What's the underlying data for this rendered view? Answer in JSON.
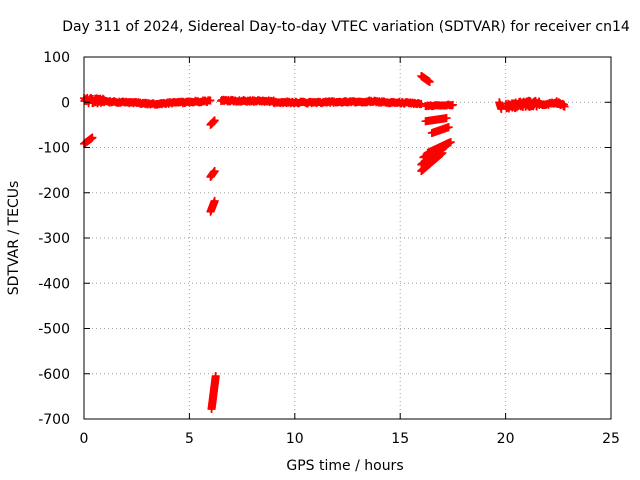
{
  "chart_data": {
    "type": "scatter",
    "title": "Day 311 of 2024, Sidereal Day-to-day VTEC variation (SDTVAR) for receiver cn14",
    "xlabel": "GPS time / hours",
    "ylabel": "SDTVAR / TECUs",
    "xlim": [
      0,
      25
    ],
    "ylim": [
      -700,
      100
    ],
    "xticks": [
      0,
      5,
      10,
      15,
      20,
      25
    ],
    "yticks": [
      100,
      0,
      -100,
      -200,
      -300,
      -400,
      -500,
      -600,
      -700
    ],
    "grid": true,
    "marker": "+",
    "colors": {
      "series": "#ff0000",
      "grid": "#a0a0a0",
      "axis": "#000000",
      "background": "#ffffff"
    },
    "series": [
      {
        "name": "cn14",
        "segments": [
          {
            "x": [
              0.0,
              0.4
            ],
            "y": [
              -92,
              -78
            ],
            "step": 0.03
          },
          {
            "x": [
              0.0,
              1.0
            ],
            "y": [
              4,
              3
            ],
            "jitter": 6,
            "step": 0.02
          },
          {
            "x": [
              1.0,
              3.5
            ],
            "y": [
              2,
              -4
            ],
            "jitter": 2,
            "step": 0.04
          },
          {
            "x": [
              3.5,
              6.0
            ],
            "y": [
              -3,
              3
            ],
            "jitter": 2,
            "step": 0.04
          },
          {
            "x": [
              6.0,
              6.2
            ],
            "y": [
              -50,
              -40
            ],
            "step": 0.02
          },
          {
            "x": [
              6.0,
              6.2
            ],
            "y": [
              -165,
              -152
            ],
            "step": 0.02
          },
          {
            "x": [
              6.0,
              6.2
            ],
            "y": [
              -242,
              -218
            ],
            "step": 0.015
          },
          {
            "x": [
              6.05,
              6.25
            ],
            "y": [
              -678,
              -605
            ],
            "step": 0.006
          },
          {
            "x": [
              6.5,
              9.0
            ],
            "y": [
              4,
              2
            ],
            "jitter": 2,
            "step": 0.04
          },
          {
            "x": [
              9.0,
              11.0
            ],
            "y": [
              0,
              -1
            ],
            "jitter": 2,
            "step": 0.04
          },
          {
            "x": [
              11.0,
              13.5
            ],
            "y": [
              0,
              1
            ],
            "jitter": 2,
            "step": 0.04
          },
          {
            "x": [
              13.5,
              16.0
            ],
            "y": [
              2,
              -3
            ],
            "jitter": 2,
            "step": 0.04
          },
          {
            "x": [
              16.0,
              16.4
            ],
            "y": [
              58,
              45
            ],
            "step": 0.02
          },
          {
            "x": [
              16.2,
              17.5
            ],
            "y": [
              -8,
              -6
            ],
            "jitter": 1,
            "step": 0.05
          },
          {
            "x": [
              16.2,
              17.2
            ],
            "y": [
              -42,
              -35
            ],
            "step": 0.04
          },
          {
            "x": [
              16.5,
              17.3
            ],
            "y": [
              -68,
              -55
            ],
            "step": 0.04
          },
          {
            "x": [
              16.0,
              17.0
            ],
            "y": [
              -152,
              -112
            ],
            "step": 0.03
          },
          {
            "x": [
              16.0,
              17.2
            ],
            "y": [
              -138,
              -95
            ],
            "step": 0.03
          },
          {
            "x": [
              16.1,
              17.3
            ],
            "y": [
              -122,
              -90
            ],
            "step": 0.03
          },
          {
            "x": [
              16.3,
              17.4
            ],
            "y": [
              -112,
              -88
            ],
            "step": 0.03
          },
          {
            "x": [
              19.7,
              19.8
            ],
            "y": [
              0,
              -15
            ],
            "step": 0.01
          },
          {
            "x": [
              20.0,
              21.6
            ],
            "y": [
              -8,
              -2
            ],
            "jitter": 7,
            "step": 0.02
          },
          {
            "x": [
              21.6,
              22.4
            ],
            "y": [
              -6,
              -1
            ],
            "jitter": 3,
            "step": 0.04
          },
          {
            "x": [
              22.4,
              22.8
            ],
            "y": [
              0,
              -8
            ],
            "jitter": 3,
            "step": 0.03
          }
        ]
      }
    ]
  }
}
